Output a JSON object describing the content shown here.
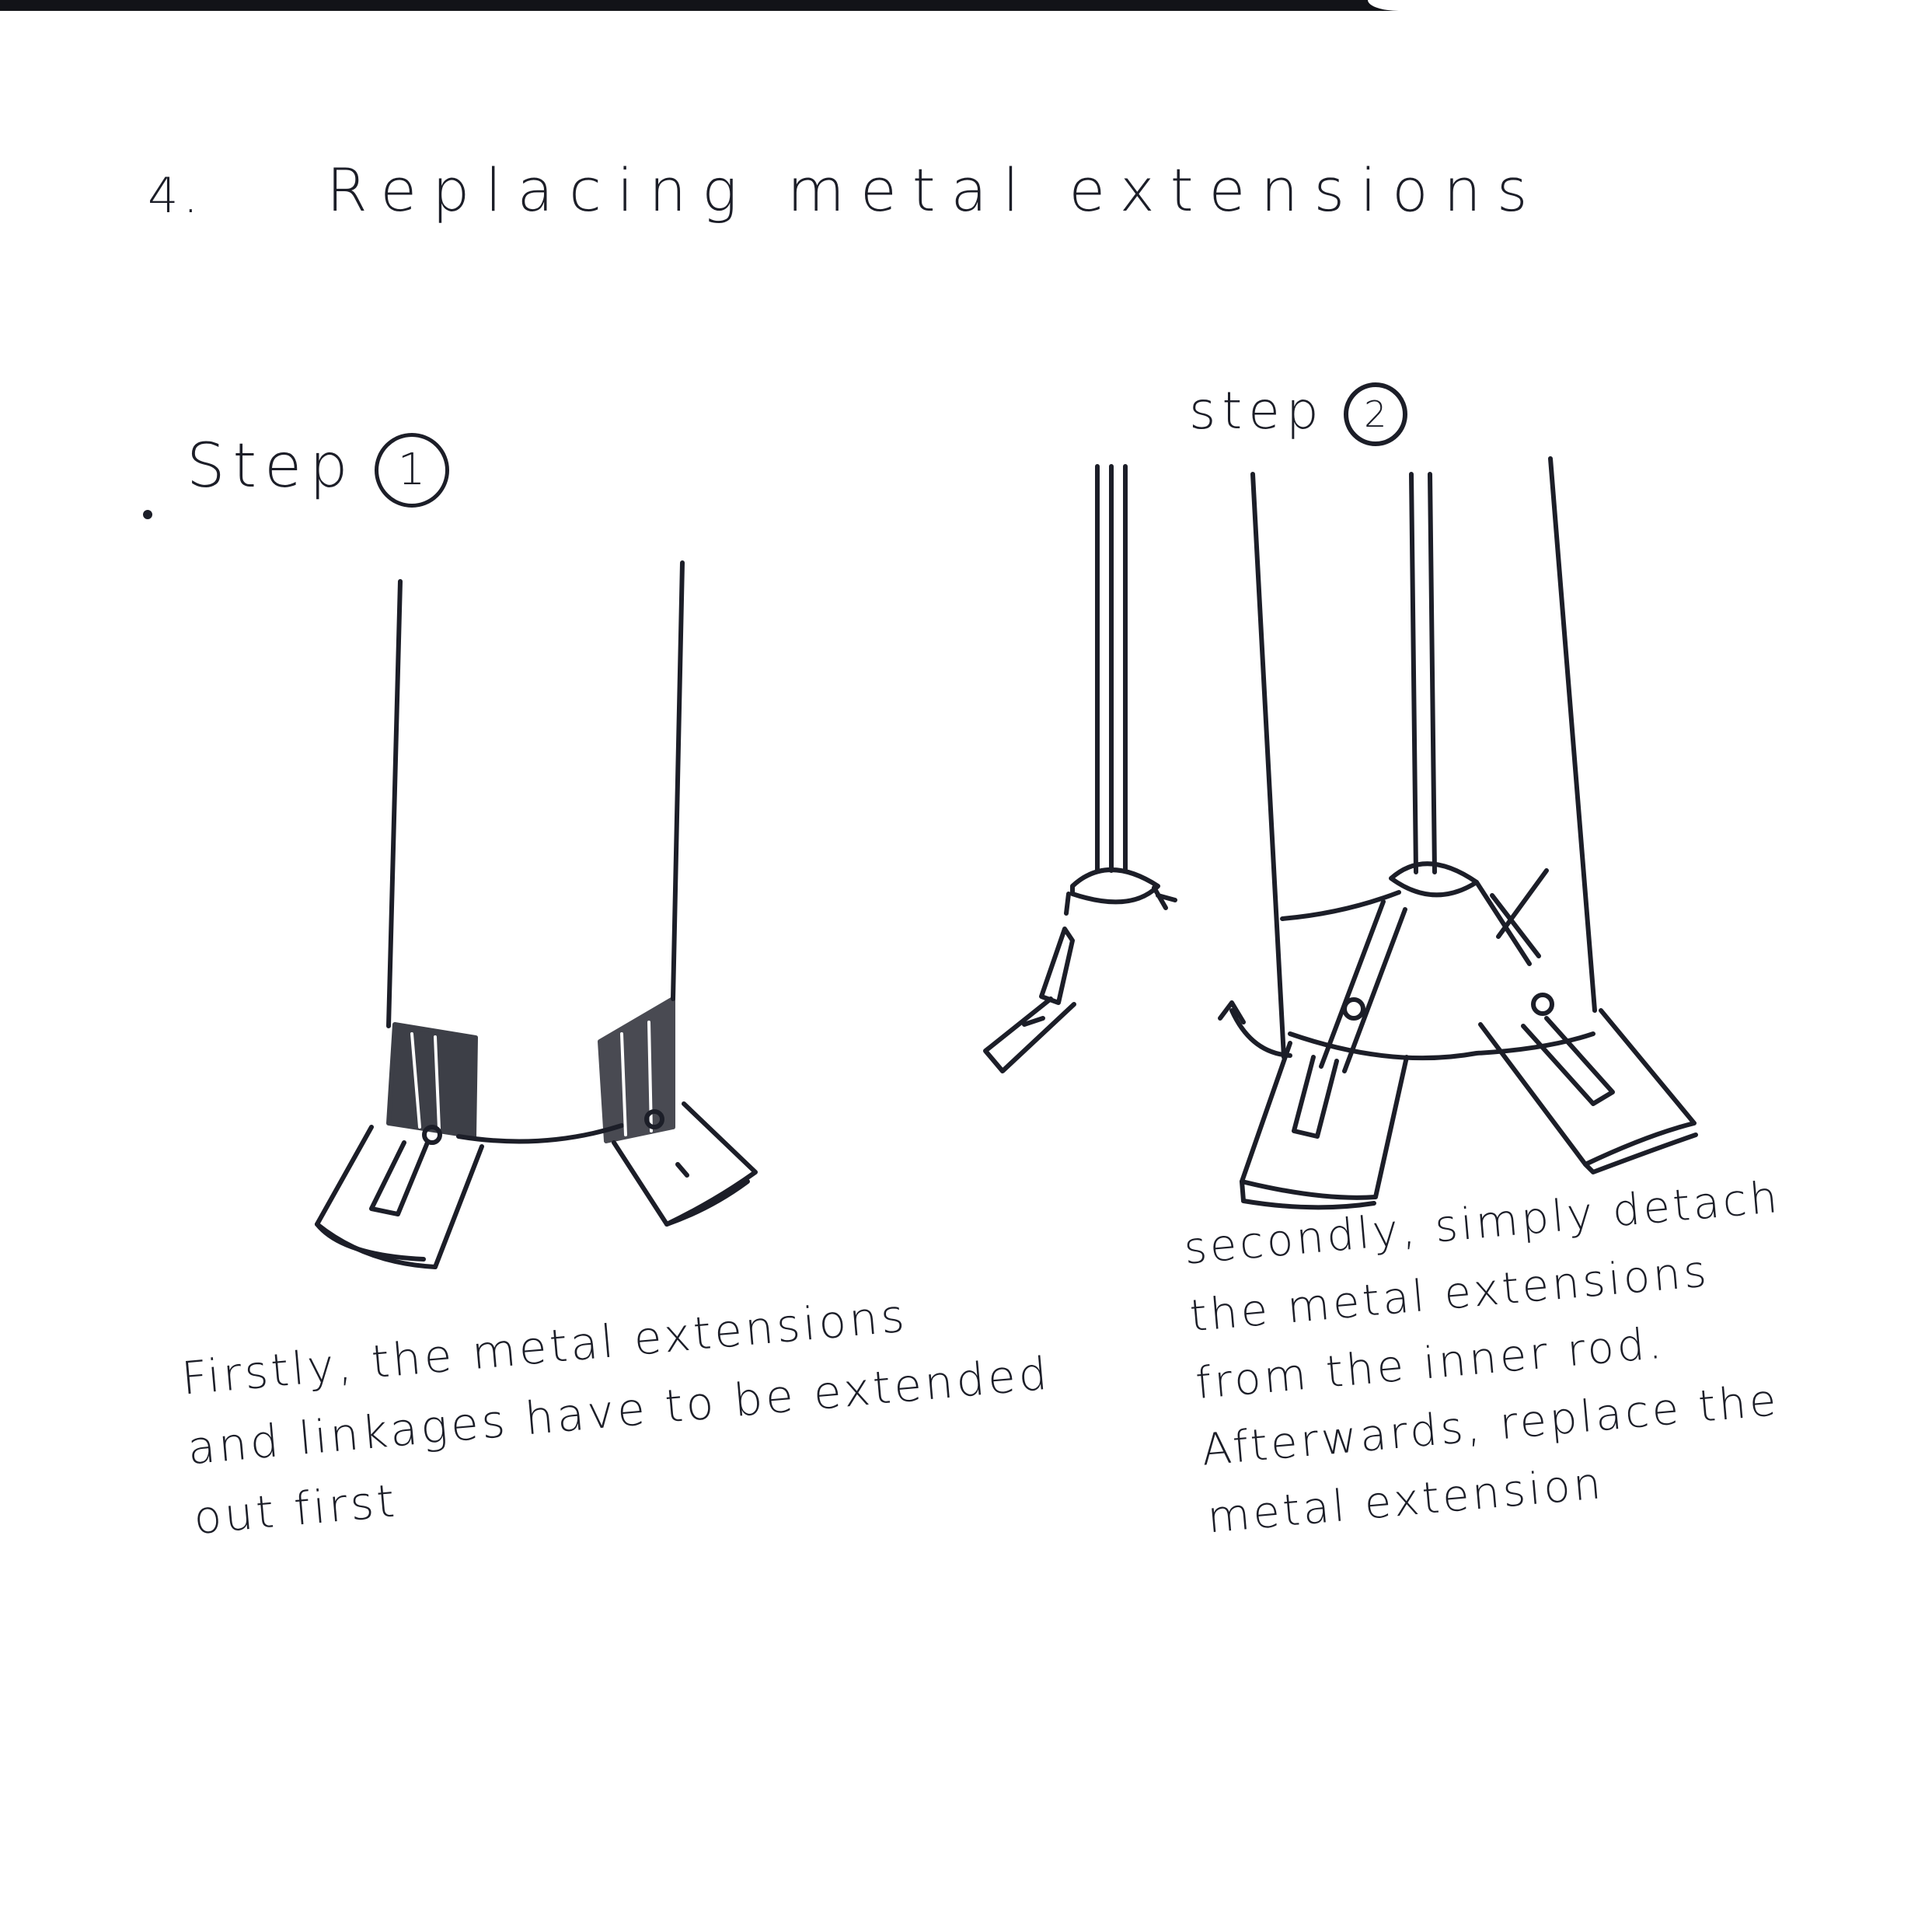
{
  "title": {
    "number": "4.",
    "text": "Replacing metal extensions"
  },
  "step1": {
    "label": "Step",
    "number": "1",
    "caption_lines": [
      "Firstly, the metal extensions",
      "and linkages have to be extended",
      "out first"
    ]
  },
  "step2": {
    "label": "step",
    "number": "2",
    "caption_lines": [
      "secondly, simply detach",
      "the metal extensions",
      "from the inner rod.",
      "Afterwards, replace the",
      "metal extension"
    ]
  },
  "colors": {
    "ink": "#1c1e28",
    "paper": "#ffffff",
    "top_band": "#121318"
  }
}
